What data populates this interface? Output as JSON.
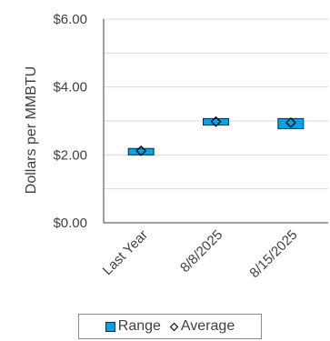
{
  "chart_data": {
    "type": "bar",
    "title": "",
    "xlabel": "",
    "ylabel": "Dollars per MMBTU",
    "ylim": [
      0,
      6
    ],
    "yticks": [
      0,
      2,
      4,
      6
    ],
    "ytick_labels": [
      "$0.00",
      "$2.00",
      "$4.00",
      "$6.00"
    ],
    "minor_gridlines": [
      1,
      3,
      5
    ],
    "categories": [
      "Last Year",
      "8/8/2025",
      "8/15/2025"
    ],
    "series": [
      {
        "name": "Range",
        "kind": "floating-bar",
        "low": [
          2.0,
          2.88,
          2.77
        ],
        "high": [
          2.19,
          3.07,
          3.07
        ]
      },
      {
        "name": "Average",
        "kind": "marker",
        "values": [
          2.12,
          2.98,
          2.95
        ]
      }
    ],
    "legend_position": "bottom"
  },
  "colors": {
    "bar_fill": "#00a2e8",
    "bar_stroke": "#0b2e45",
    "axis": "#404040",
    "grid": "#d9d9d9",
    "text": "#404040"
  },
  "legend": {
    "range_label": "Range",
    "average_label": "Average"
  }
}
